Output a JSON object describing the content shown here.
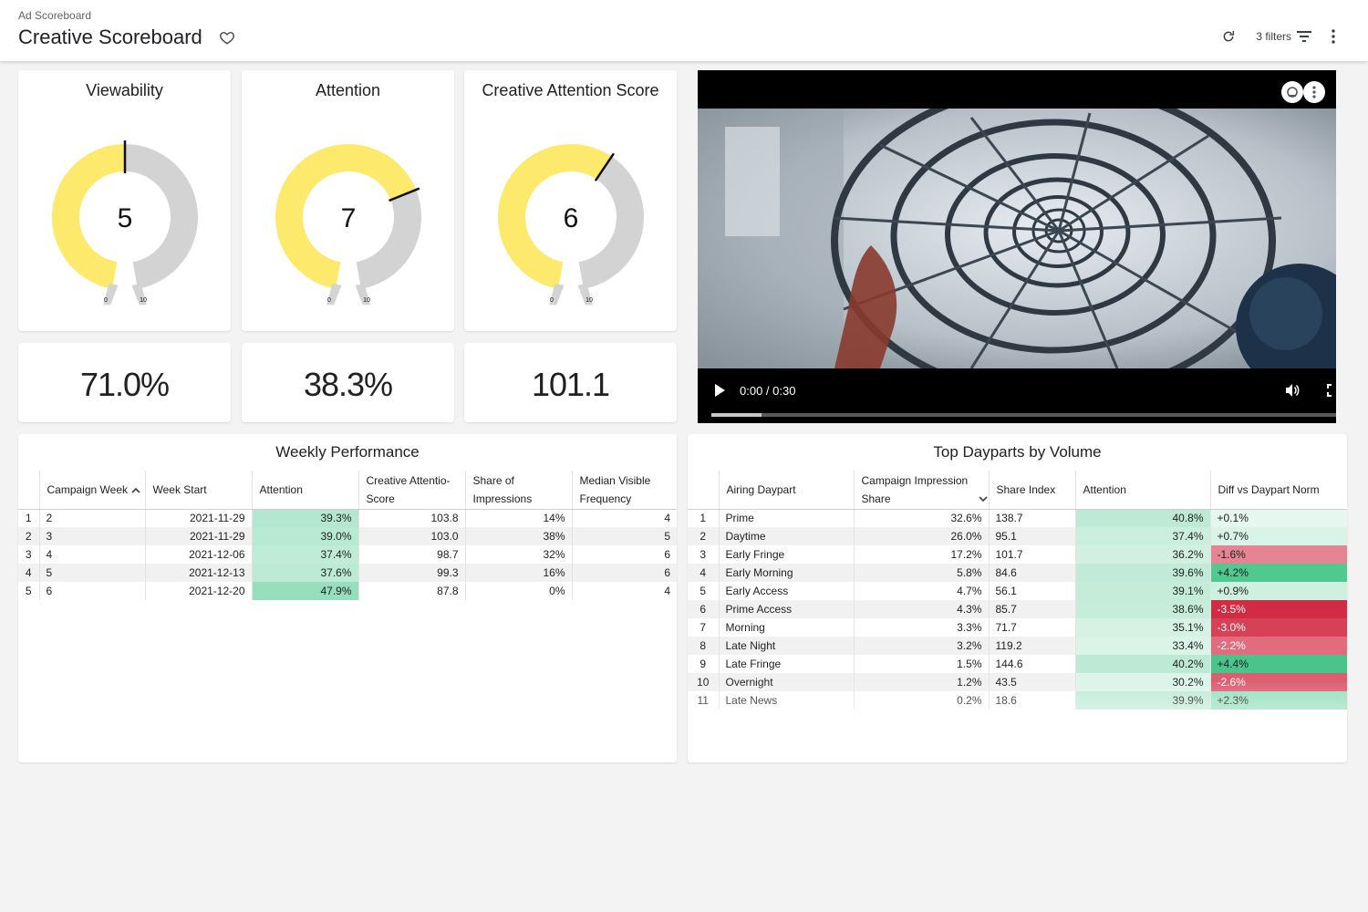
{
  "header": {
    "breadcrumb": "Ad Scoreboard",
    "title": "Creative Scoreboard",
    "filters_label": "3 filters"
  },
  "gauges": [
    {
      "title": "Viewability",
      "value": "5",
      "fraction": 0.5,
      "min": "0",
      "max": "10",
      "kpi": "71.0%"
    },
    {
      "title": "Attention",
      "value": "7",
      "fraction": 0.7,
      "min": "0",
      "max": "10",
      "kpi": "38.3%"
    },
    {
      "title": "Creative Attention Score",
      "value": "6",
      "fraction": 0.6,
      "min": "0",
      "max": "10",
      "kpi": "101.1"
    }
  ],
  "video": {
    "time": "0:00 / 0:30",
    "progress": 0.08
  },
  "weekly": {
    "title": "Weekly Performance",
    "columns": [
      "Campaign Week",
      "Week Start",
      "Attention",
      "Creative Attention Score",
      "Share of Impressions",
      "Median Visible Frequency"
    ],
    "col_lines": [
      [
        "Campaign Week"
      ],
      [
        "Week Start"
      ],
      [
        "Attention"
      ],
      [
        "Creative Attentio-",
        "Score"
      ],
      [
        "Share of",
        "Impressions"
      ],
      [
        "Median Visible",
        "Frequency"
      ]
    ],
    "rows": [
      {
        "idx": "1",
        "week": "2",
        "start": "2021-11-29",
        "attention": "39.3%",
        "cas": "103.8",
        "share": "14%",
        "freq": "4",
        "att_level": 0.35
      },
      {
        "idx": "2",
        "week": "3",
        "start": "2021-11-29",
        "attention": "39.0%",
        "cas": "103.0",
        "share": "38%",
        "freq": "5",
        "att_level": 0.32
      },
      {
        "idx": "3",
        "week": "4",
        "start": "2021-12-06",
        "attention": "37.4%",
        "cas": "98.7",
        "share": "32%",
        "freq": "6",
        "att_level": 0.25
      },
      {
        "idx": "4",
        "week": "5",
        "start": "2021-12-13",
        "attention": "37.6%",
        "cas": "99.3",
        "share": "16%",
        "freq": "6",
        "att_level": 0.27
      },
      {
        "idx": "5",
        "week": "6",
        "start": "2021-12-20",
        "attention": "47.9%",
        "cas": "87.8",
        "share": "0%",
        "freq": "4",
        "att_level": 0.6
      }
    ]
  },
  "dayparts": {
    "title": "Top Dayparts by Volume",
    "columns": [
      "Airing Daypart",
      "Campaign Impression Share",
      "Share Index",
      "Attention",
      "Diff vs Daypart Norm"
    ],
    "col_lines": [
      [
        "Airing Daypart"
      ],
      [
        "Campaign Impression",
        "Share"
      ],
      [
        "Share Index"
      ],
      [
        "Attention"
      ],
      [
        "Diff vs Daypart Norm"
      ]
    ],
    "rows": [
      {
        "idx": "1",
        "daypart": "Prime",
        "share": "32.6%",
        "index": "138.7",
        "attention": "40.8%",
        "diff": "+0.1%",
        "att_level": 0.35,
        "diff_level": 0.03
      },
      {
        "idx": "2",
        "daypart": "Daytime",
        "share": "26.0%",
        "index": "95.1",
        "attention": "37.4%",
        "diff": "+0.7%",
        "att_level": 0.18,
        "diff_level": 0.12
      },
      {
        "idx": "3",
        "daypart": "Early Fringe",
        "share": "17.2%",
        "index": "101.7",
        "attention": "36.2%",
        "diff": "-1.6%",
        "att_level": 0.12,
        "diff_level": -0.38
      },
      {
        "idx": "4",
        "daypart": "Early Morning",
        "share": "5.8%",
        "index": "84.6",
        "attention": "39.6%",
        "diff": "+4.2%",
        "att_level": 0.3,
        "diff_level": 0.95
      },
      {
        "idx": "5",
        "daypart": "Early Access",
        "share": "4.7%",
        "index": "56.1",
        "attention": "39.1%",
        "diff": "+0.9%",
        "att_level": 0.27,
        "diff_level": 0.18
      },
      {
        "idx": "6",
        "daypart": "Prime Access",
        "share": "4.3%",
        "index": "85.7",
        "attention": "38.6%",
        "diff": "-3.5%",
        "att_level": 0.24,
        "diff_level": -1.0
      },
      {
        "idx": "7",
        "daypart": "Morning",
        "share": "3.3%",
        "index": "71.7",
        "attention": "35.1%",
        "diff": "-3.0%",
        "att_level": 0.08,
        "diff_level": -0.85
      },
      {
        "idx": "8",
        "daypart": "Late Night",
        "share": "3.2%",
        "index": "119.2",
        "attention": "33.4%",
        "diff": "-2.2%",
        "att_level": 0.02,
        "diff_level": -0.55
      },
      {
        "idx": "9",
        "daypart": "Late Fringe",
        "share": "1.5%",
        "index": "144.6",
        "attention": "40.2%",
        "diff": "+4.4%",
        "att_level": 0.33,
        "diff_level": 1.0
      },
      {
        "idx": "10",
        "daypart": "Overnight",
        "share": "1.2%",
        "index": "43.5",
        "attention": "30.2%",
        "diff": "-2.6%",
        "att_level": 0.0,
        "diff_level": -0.65
      },
      {
        "idx": "11",
        "daypart": "Late News",
        "share": "0.2%",
        "index": "18.6",
        "attention": "39.9%",
        "diff": "+2.3%",
        "att_level": 0.3,
        "diff_level": 0.5
      }
    ]
  },
  "colors": {
    "gauge_fill": "#fdea6d",
    "gauge_track": "#d3d3d3",
    "green_heat": "#3fc285",
    "red_heat": "#d0203a"
  }
}
